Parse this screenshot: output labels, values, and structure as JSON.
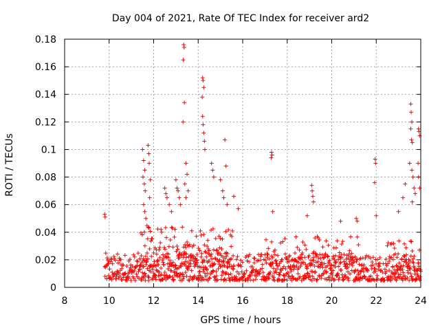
{
  "chart_data": {
    "type": "scatter",
    "title": "Day 004 of 2021, Rate Of TEC Index for receiver ard2",
    "xlabel": "GPS time / hours",
    "ylabel": "ROTI / TECUs",
    "xlim": [
      8,
      24
    ],
    "ylim": [
      0,
      0.18
    ],
    "x_ticks": [
      8,
      10,
      12,
      14,
      16,
      18,
      20,
      22,
      24
    ],
    "x_tick_labels": [
      "8",
      "10",
      "12",
      "14",
      "16",
      "18",
      "20",
      "22",
      "24"
    ],
    "y_ticks": [
      0,
      0.02,
      0.04,
      0.06,
      0.08,
      0.1,
      0.12,
      0.14,
      0.16,
      0.18
    ],
    "y_tick_labels": [
      "0",
      "0.02",
      "0.04",
      "0.06",
      "0.08",
      "0.1",
      "0.12",
      "0.14",
      "0.16",
      "0.18"
    ],
    "grid": true,
    "marker": "plus",
    "color": "#ff0000",
    "series": [
      {
        "points": [
          [
            9.8,
            0.053
          ],
          [
            9.82,
            0.051
          ],
          [
            11.5,
            0.1
          ],
          [
            11.55,
            0.092
          ],
          [
            11.6,
            0.085
          ],
          [
            11.52,
            0.08
          ],
          [
            11.58,
            0.075
          ],
          [
            11.62,
            0.07
          ],
          [
            11.55,
            0.06
          ],
          [
            11.6,
            0.055
          ],
          [
            11.65,
            0.05
          ],
          [
            11.75,
            0.103
          ],
          [
            11.78,
            0.097
          ],
          [
            11.8,
            0.09
          ],
          [
            11.85,
            0.078
          ],
          [
            11.82,
            0.065
          ],
          [
            12.5,
            0.072
          ],
          [
            12.55,
            0.068
          ],
          [
            12.6,
            0.065
          ],
          [
            12.7,
            0.06
          ],
          [
            12.8,
            0.055
          ],
          [
            13.0,
            0.078
          ],
          [
            13.05,
            0.072
          ],
          [
            13.1,
            0.07
          ],
          [
            13.15,
            0.065
          ],
          [
            13.2,
            0.06
          ],
          [
            13.35,
            0.176
          ],
          [
            13.37,
            0.174
          ],
          [
            13.33,
            0.165
          ],
          [
            13.38,
            0.134
          ],
          [
            13.32,
            0.12
          ],
          [
            13.45,
            0.09
          ],
          [
            13.5,
            0.082
          ],
          [
            13.4,
            0.075
          ],
          [
            13.55,
            0.07
          ],
          [
            13.45,
            0.065
          ],
          [
            14.2,
            0.152
          ],
          [
            14.22,
            0.15
          ],
          [
            14.25,
            0.145
          ],
          [
            14.18,
            0.138
          ],
          [
            14.2,
            0.124
          ],
          [
            14.22,
            0.118
          ],
          [
            14.25,
            0.112
          ],
          [
            14.28,
            0.106
          ],
          [
            14.3,
            0.1
          ],
          [
            14.6,
            0.09
          ],
          [
            14.65,
            0.085
          ],
          [
            14.7,
            0.08
          ],
          [
            15.0,
            0.078
          ],
          [
            15.1,
            0.07
          ],
          [
            15.15,
            0.065
          ],
          [
            15.2,
            0.107
          ],
          [
            15.25,
            0.088
          ],
          [
            15.3,
            0.06
          ],
          [
            15.6,
            0.066
          ],
          [
            15.8,
            0.057
          ],
          [
            17.3,
            0.098
          ],
          [
            17.32,
            0.096
          ],
          [
            17.28,
            0.094
          ],
          [
            17.35,
            0.055
          ],
          [
            18.9,
            0.052
          ],
          [
            19.1,
            0.074
          ],
          [
            19.12,
            0.07
          ],
          [
            19.15,
            0.066
          ],
          [
            19.18,
            0.062
          ],
          [
            20.4,
            0.048
          ],
          [
            21.1,
            0.05
          ],
          [
            21.15,
            0.048
          ],
          [
            21.95,
            0.093
          ],
          [
            21.97,
            0.09
          ],
          [
            21.93,
            0.076
          ],
          [
            22.0,
            0.052
          ],
          [
            23.0,
            0.055
          ],
          [
            23.2,
            0.065
          ],
          [
            23.3,
            0.075
          ],
          [
            23.55,
            0.133
          ],
          [
            23.57,
            0.127
          ],
          [
            23.6,
            0.12
          ],
          [
            23.55,
            0.115
          ],
          [
            23.58,
            0.107
          ],
          [
            23.62,
            0.105
          ],
          [
            23.5,
            0.09
          ],
          [
            23.6,
            0.085
          ],
          [
            23.65,
            0.08
          ],
          [
            23.7,
            0.072
          ],
          [
            23.75,
            0.068
          ],
          [
            23.62,
            0.062
          ],
          [
            23.9,
            0.115
          ],
          [
            23.92,
            0.113
          ],
          [
            23.95,
            0.11
          ],
          [
            23.88,
            0.09
          ],
          [
            23.9,
            0.08
          ],
          [
            23.95,
            0.072
          ]
        ],
        "dense_bands": [
          {
            "x_start": 9.8,
            "x_end": 24.0,
            "x_step": 0.016,
            "y_low": 0.005,
            "y_high": 0.025
          },
          {
            "x_start": 11.4,
            "x_end": 15.6,
            "x_step": 0.03,
            "y_low": 0.015,
            "y_high": 0.045
          },
          {
            "x_start": 17.0,
            "x_end": 21.5,
            "x_step": 0.05,
            "y_low": 0.015,
            "y_high": 0.038
          },
          {
            "x_start": 22.5,
            "x_end": 24.0,
            "x_step": 0.04,
            "y_low": 0.012,
            "y_high": 0.035
          }
        ]
      }
    ]
  }
}
